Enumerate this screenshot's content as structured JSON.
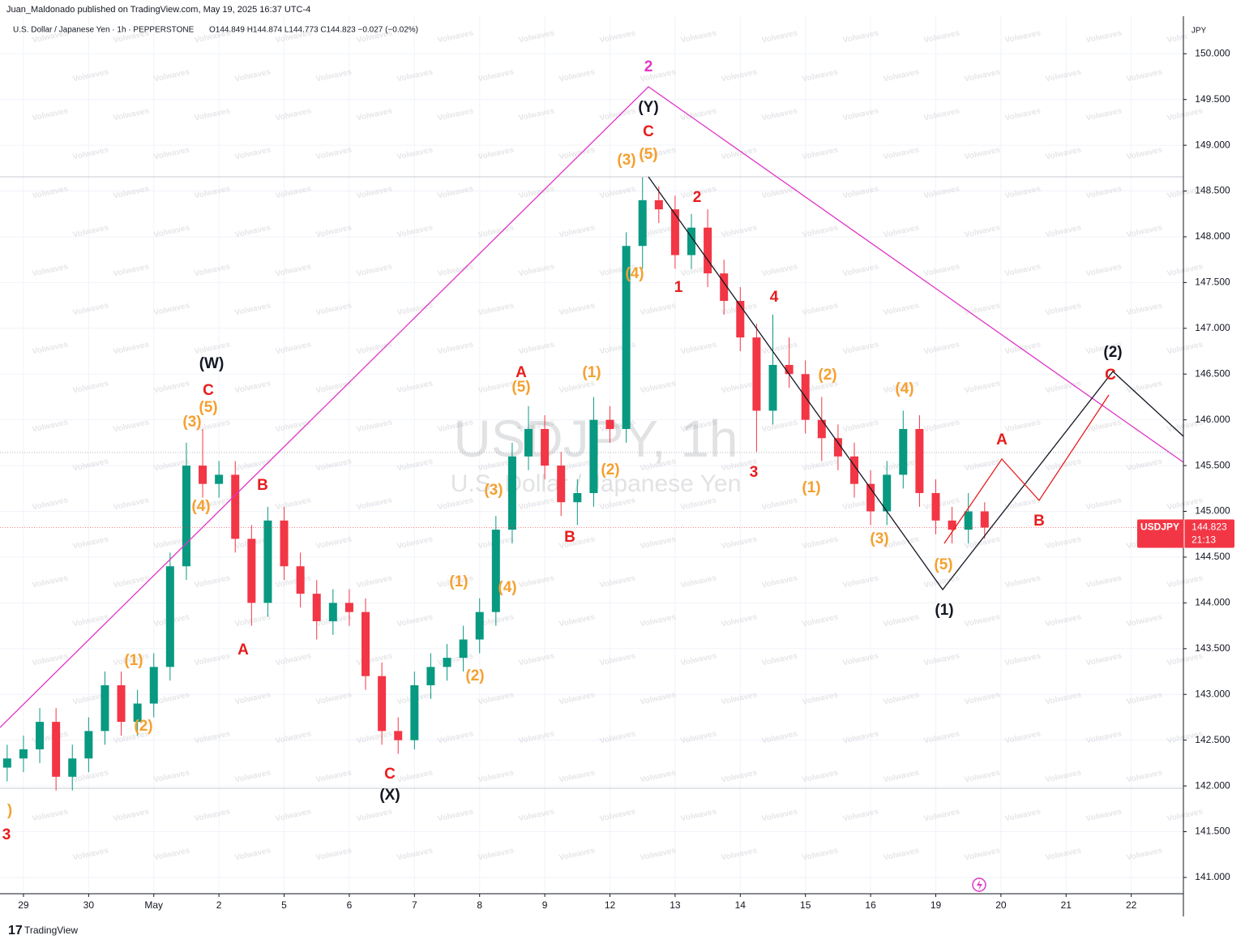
{
  "header": {
    "publisher": "Juan_Maldonado published on TradingView.com, May 19, 2025 16:37 UTC-4",
    "symbol_line": "U.S. Dollar / Japanese Yen · 1h · PEPPERSTONE",
    "ohlc": "O144.849 H144.874 L144.773 C144.823 −0.027 (−0.02%)",
    "currency": "JPY",
    "watermark_title": "USDJPY, 1h",
    "watermark_subtitle": "U.S. Dollar / Japanese Yen",
    "overlay_watermark": "Volwaves",
    "footer": "TradingView"
  },
  "chart_data": {
    "type": "candlestick",
    "up_color": "#089981",
    "down_color": "#f23645",
    "xlim": [
      -0.36,
      17.8
    ],
    "ylim": [
      140.84,
      150.41
    ],
    "xticks": [
      {
        "value": 0,
        "label": "29"
      },
      {
        "value": 1,
        "label": "30"
      },
      {
        "value": 2,
        "label": "May"
      },
      {
        "value": 3,
        "label": "2"
      },
      {
        "value": 4,
        "label": "5"
      },
      {
        "value": 5,
        "label": "6"
      },
      {
        "value": 6,
        "label": "7"
      },
      {
        "value": 7,
        "label": "8"
      },
      {
        "value": 8,
        "label": "9"
      },
      {
        "value": 9,
        "label": "12"
      },
      {
        "value": 10,
        "label": "13"
      },
      {
        "value": 11,
        "label": "14"
      },
      {
        "value": 12,
        "label": "15"
      },
      {
        "value": 13,
        "label": "16"
      },
      {
        "value": 14,
        "label": "19"
      },
      {
        "value": 15,
        "label": "20"
      },
      {
        "value": 16,
        "label": "21"
      },
      {
        "value": 17,
        "label": "22"
      }
    ],
    "yticks": [
      {
        "value": 141,
        "label": "141.000"
      },
      {
        "value": 141.5,
        "label": "141.500"
      },
      {
        "value": 142,
        "label": "142.000"
      },
      {
        "value": 142.5,
        "label": "142.500"
      },
      {
        "value": 143,
        "label": "143.000"
      },
      {
        "value": 143.5,
        "label": "143.500"
      },
      {
        "value": 144,
        "label": "144.000"
      },
      {
        "value": 144.5,
        "label": "144.500"
      },
      {
        "value": 145,
        "label": "145.000"
      },
      {
        "value": 145.5,
        "label": "145.500"
      },
      {
        "value": 146,
        "label": "146.000"
      },
      {
        "value": 146.5,
        "label": "146.500"
      },
      {
        "value": 147,
        "label": "147.000"
      },
      {
        "value": 147.5,
        "label": "147.500"
      },
      {
        "value": 148,
        "label": "148.000"
      },
      {
        "value": 148.5,
        "label": "148.500"
      },
      {
        "value": 149,
        "label": "149.000"
      },
      {
        "value": 149.5,
        "label": "149.500"
      },
      {
        "value": 150,
        "label": "150.000"
      }
    ],
    "grid": true,
    "candles": {
      "x": [
        -0.25,
        0,
        0.25,
        0.5,
        0.75,
        1,
        1.25,
        1.5,
        1.75,
        2,
        2.25,
        2.5,
        2.75,
        3,
        3.25,
        3.5,
        3.75,
        4,
        4.25,
        4.5,
        4.75,
        5,
        5.25,
        5.5,
        5.75,
        6,
        6.25,
        6.5,
        6.75,
        7,
        7.25,
        7.5,
        7.75,
        8,
        8.25,
        8.5,
        8.75,
        9,
        9.25,
        9.5,
        9.75,
        10,
        10.25,
        10.5,
        10.75,
        11,
        11.25,
        11.5,
        11.75,
        12,
        12.25,
        12.5,
        12.75,
        13,
        13.25,
        13.5,
        13.75,
        14,
        14.25,
        14.5,
        14.75
      ],
      "open": [
        142.2,
        142.3,
        142.4,
        142.7,
        142.1,
        142.3,
        142.6,
        143.1,
        142.7,
        142.9,
        143.3,
        144.4,
        145.5,
        145.3,
        145.4,
        144.7,
        144.0,
        144.9,
        144.4,
        144.1,
        143.8,
        144.0,
        143.9,
        143.2,
        142.6,
        142.5,
        143.1,
        143.3,
        143.4,
        143.6,
        143.9,
        144.8,
        145.6,
        145.9,
        145.5,
        145.1,
        145.2,
        146.0,
        145.9,
        147.9,
        148.4,
        148.3,
        147.8,
        148.1,
        147.6,
        147.3,
        146.9,
        146.1,
        146.6,
        146.5,
        146.0,
        145.8,
        145.6,
        145.3,
        145.0,
        145.4,
        145.9,
        145.2,
        144.9,
        144.8,
        145.0
      ],
      "high": [
        142.45,
        142.55,
        142.85,
        142.85,
        142.45,
        142.75,
        143.25,
        143.25,
        143.05,
        143.45,
        144.55,
        145.75,
        145.9,
        145.55,
        145.55,
        144.85,
        145.05,
        145.05,
        144.55,
        144.25,
        144.15,
        144.15,
        144.05,
        143.35,
        142.75,
        143.25,
        143.45,
        143.55,
        143.75,
        144.05,
        144.95,
        145.75,
        146.15,
        146.05,
        145.65,
        145.35,
        146.25,
        146.15,
        148.05,
        148.65,
        148.55,
        148.45,
        148.25,
        148.3,
        147.75,
        147.45,
        147.05,
        147.15,
        146.9,
        146.65,
        146.25,
        145.95,
        145.75,
        145.45,
        145.55,
        146.1,
        146.05,
        145.35,
        145.05,
        145.2,
        145.1
      ],
      "low": [
        142.05,
        142.15,
        142.25,
        141.95,
        141.95,
        142.15,
        142.45,
        142.55,
        142.55,
        142.75,
        143.15,
        144.25,
        145.15,
        145.15,
        144.55,
        143.75,
        143.85,
        144.25,
        143.95,
        143.6,
        143.65,
        143.75,
        143.05,
        142.45,
        142.35,
        142.4,
        142.95,
        143.15,
        143.25,
        143.45,
        143.75,
        144.65,
        145.45,
        145.35,
        144.95,
        144.85,
        145.05,
        145.75,
        145.75,
        147.65,
        148.15,
        147.65,
        147.65,
        147.45,
        147.15,
        146.75,
        145.65,
        145.95,
        146.35,
        145.85,
        145.55,
        145.45,
        145.15,
        144.85,
        144.85,
        145.25,
        145.05,
        144.75,
        144.65,
        144.65,
        144.7
      ],
      "close": [
        142.3,
        142.4,
        142.7,
        142.1,
        142.3,
        142.6,
        143.1,
        142.7,
        142.9,
        143.3,
        144.4,
        145.5,
        145.3,
        145.4,
        144.7,
        144.0,
        144.9,
        144.4,
        144.1,
        143.8,
        144.0,
        143.9,
        143.2,
        142.6,
        142.5,
        143.1,
        143.3,
        143.4,
        143.6,
        143.9,
        144.8,
        145.6,
        145.9,
        145.5,
        145.1,
        145.2,
        146.0,
        145.9,
        147.9,
        148.4,
        148.3,
        147.8,
        148.1,
        147.6,
        147.3,
        146.9,
        146.1,
        146.6,
        146.5,
        146.0,
        145.8,
        145.6,
        145.3,
        145.0,
        145.4,
        145.9,
        145.2,
        144.9,
        144.8,
        145.0,
        144.823
      ]
    },
    "last_price": {
      "symbol": "USDJPY",
      "value": 144.823,
      "label": "144.823",
      "countdown": "21:13",
      "color": "#f23645"
    },
    "annotations": [
      {
        "text": "2",
        "color": "#e135c8"
      },
      {
        "text": "(Y)",
        "color": "#131722"
      },
      {
        "text": "C",
        "color": "#e81c1c"
      },
      {
        "text": "(3)",
        "color": "#f5a030"
      },
      {
        "text": "(5)",
        "color": "#f5a030"
      },
      {
        "text": "2",
        "color": "#e81c1c"
      },
      {
        "text": "(4)",
        "color": "#f5a030"
      },
      {
        "text": "1",
        "color": "#e81c1c"
      },
      {
        "text": "4",
        "color": "#e81c1c"
      },
      {
        "text": "3",
        "color": "#e81c1c"
      },
      {
        "text": "(2)",
        "color": "#f5a030"
      },
      {
        "text": "(1)",
        "color": "#f5a030"
      },
      {
        "text": "(4)",
        "color": "#f5a030"
      },
      {
        "text": "(3)",
        "color": "#f5a030"
      },
      {
        "text": "(5)",
        "color": "#f5a030"
      },
      {
        "text": "(1)",
        "color": "#131722"
      },
      {
        "text": "(2)",
        "color": "#131722"
      },
      {
        "text": "C",
        "color": "#e81c1c"
      },
      {
        "text": "A",
        "color": "#e81c1c"
      },
      {
        "text": "B",
        "color": "#e81c1c"
      },
      {
        "text": "(W)",
        "color": "#131722"
      },
      {
        "text": "C",
        "color": "#e81c1c"
      },
      {
        "text": "(5)",
        "color": "#f5a030"
      },
      {
        "text": "(3)",
        "color": "#f5a030"
      },
      {
        "text": "(4)",
        "color": "#f5a030"
      },
      {
        "text": "B",
        "color": "#e81c1c"
      },
      {
        "text": "A",
        "color": "#e81c1c"
      },
      {
        "text": "(1)",
        "color": "#f5a030"
      },
      {
        "text": "(2)",
        "color": "#f5a030"
      },
      {
        "text": "C",
        "color": "#e81c1c"
      },
      {
        "text": "(X)",
        "color": "#131722"
      },
      {
        "text": "A",
        "color": "#e81c1c"
      },
      {
        "text": "(5)",
        "color": "#f5a030"
      },
      {
        "text": "(1)",
        "color": "#f5a030"
      },
      {
        "text": "(2)",
        "color": "#f5a030"
      },
      {
        "text": "(3)",
        "color": "#f5a030"
      },
      {
        "text": "B",
        "color": "#e81c1c"
      },
      {
        "text": "(1)",
        "color": "#f5a030"
      },
      {
        "text": "(4)",
        "color": "#f5a030"
      },
      {
        "text": "(2)",
        "color": "#f5a030"
      },
      {
        "text": ")",
        "color": "#f5a030"
      },
      {
        "text": "3",
        "color": "#e81c1c"
      }
    ]
  }
}
